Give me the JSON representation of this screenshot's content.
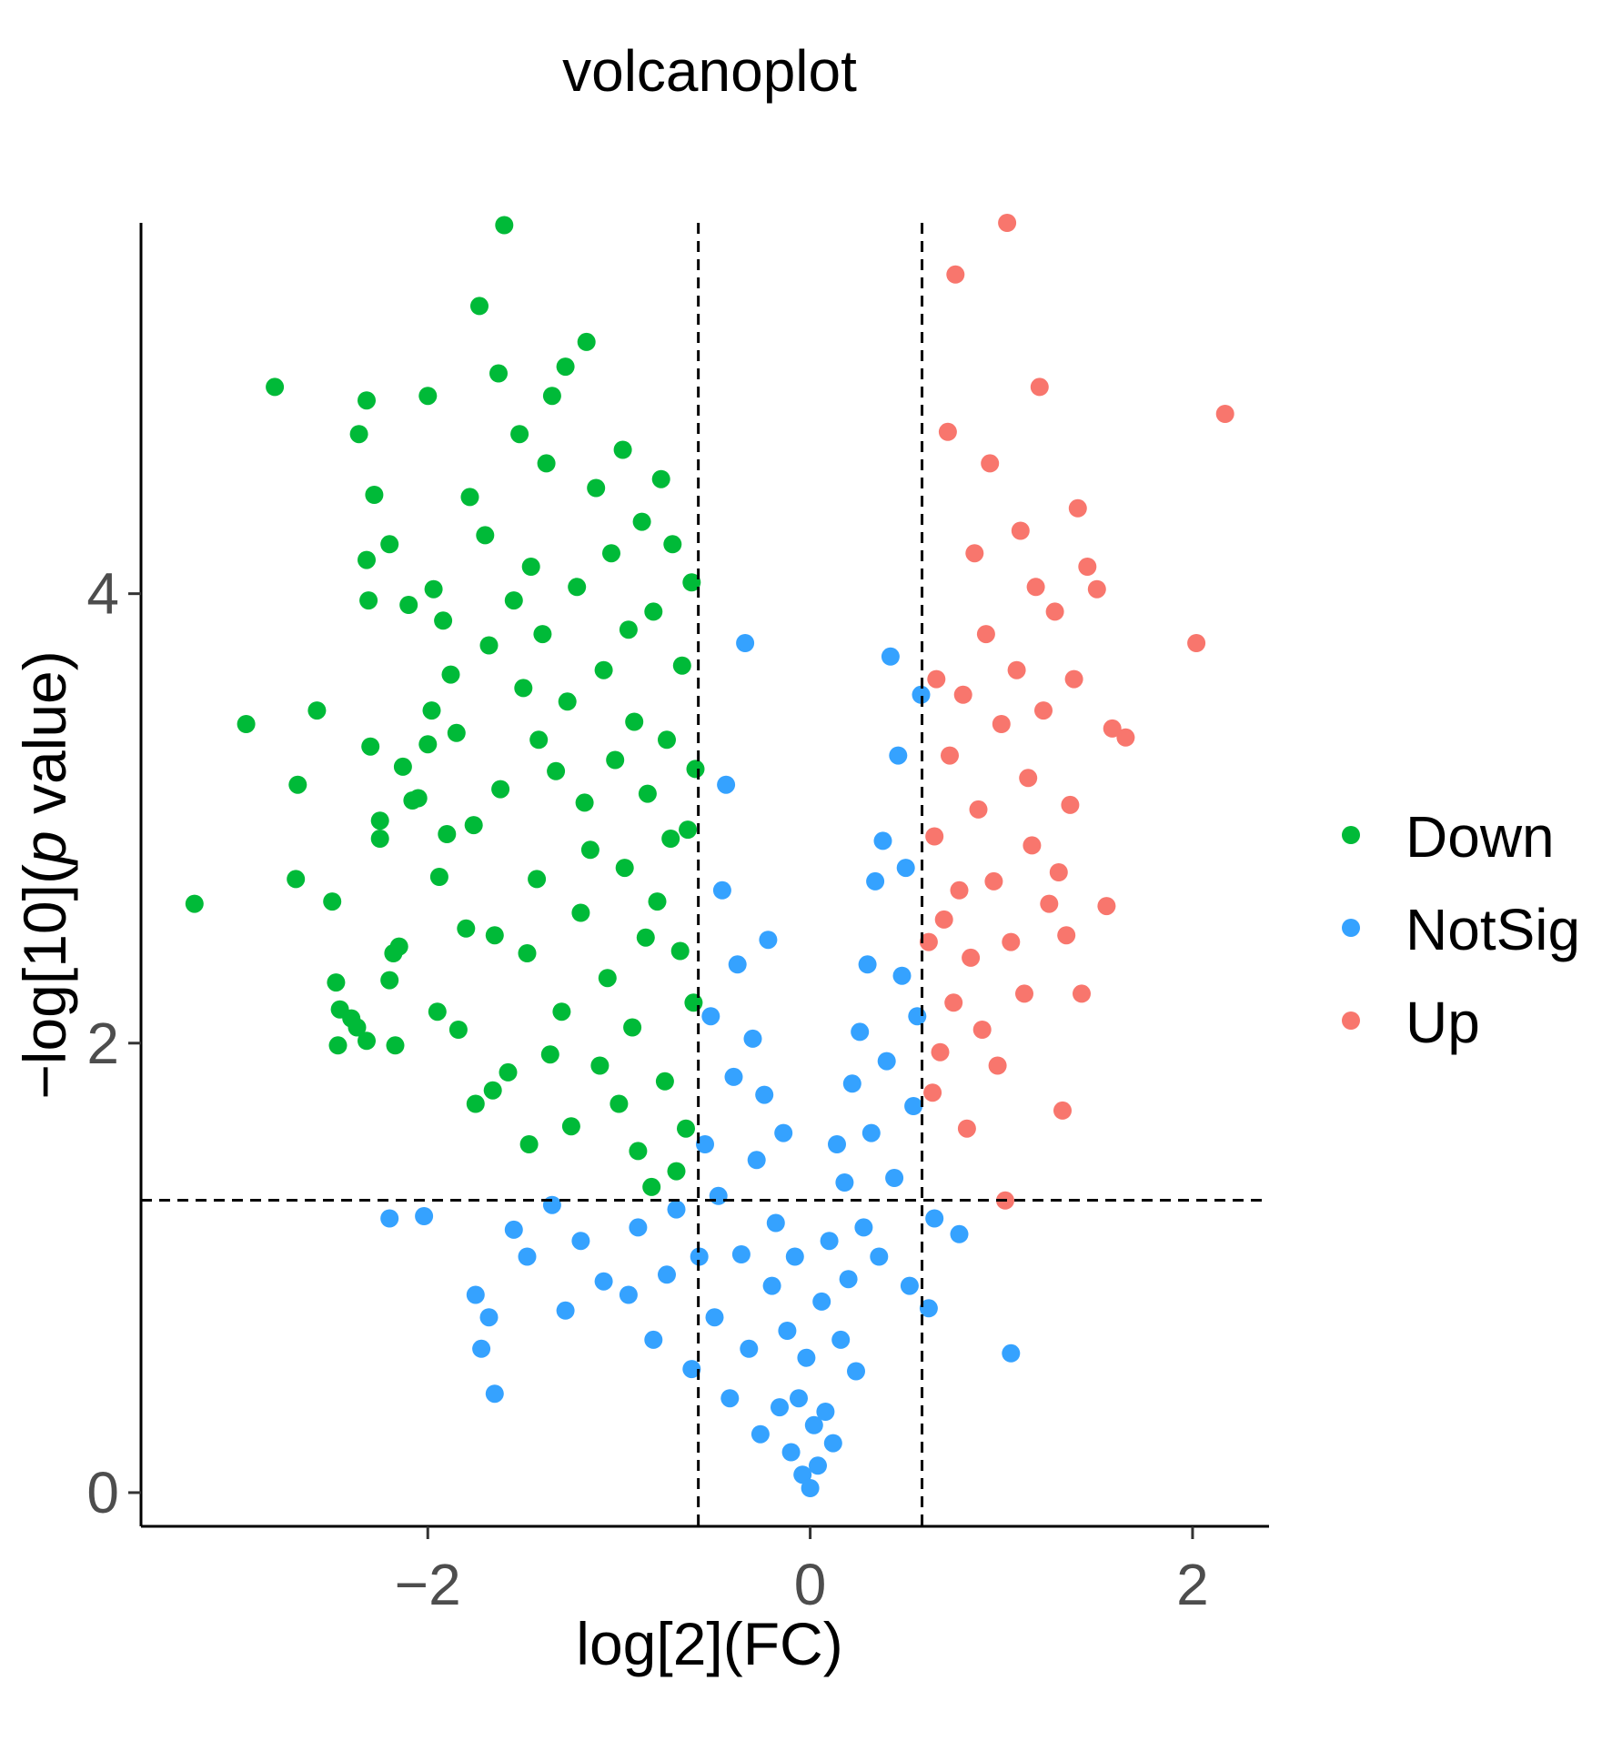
{
  "chart_data": {
    "type": "scatter",
    "title": "volcanoplot",
    "xlabel": "log[2](FC)",
    "ylabel": "−log[10](p value)",
    "ylabel_parts": {
      "prefix": "−log[10](",
      "italic": "p",
      "suffix": " value)"
    },
    "xlim": [
      -3.5,
      2.4
    ],
    "ylim": [
      -0.15,
      5.65
    ],
    "xticks": [
      -2,
      0,
      2
    ],
    "xtick_labels": [
      "−2",
      "0",
      "2"
    ],
    "yticks": [
      0,
      2,
      4
    ],
    "ytick_labels": [
      "0",
      "2",
      "4"
    ],
    "thresholds": {
      "fc_low": -0.585,
      "fc_high": 0.585,
      "p_line": 1.301
    },
    "grid": false,
    "legend_position": "right",
    "series": [
      {
        "name": "Down",
        "color": "#00ba38",
        "points": [
          [
            -3.22,
            2.62
          ],
          [
            -2.95,
            3.42
          ],
          [
            -2.8,
            4.92
          ],
          [
            -2.68,
            3.15
          ],
          [
            -2.69,
            2.73
          ],
          [
            -2.58,
            3.48
          ],
          [
            -2.48,
            2.27
          ],
          [
            -2.5,
            2.63
          ],
          [
            -2.46,
            2.15
          ],
          [
            -2.47,
            1.99
          ],
          [
            -2.4,
            2.11
          ],
          [
            -2.37,
            2.07
          ],
          [
            -2.32,
            2.01
          ],
          [
            -2.32,
            4.15
          ],
          [
            -2.31,
            3.97
          ],
          [
            -2.3,
            3.32
          ],
          [
            -2.32,
            4.86
          ],
          [
            -2.36,
            4.71
          ],
          [
            -2.28,
            4.44
          ],
          [
            -2.25,
            2.91
          ],
          [
            -2.25,
            2.99
          ],
          [
            -2.2,
            4.22
          ],
          [
            -2.2,
            2.28
          ],
          [
            -2.17,
            1.99
          ],
          [
            -2.18,
            2.4
          ],
          [
            -2.15,
            2.43
          ],
          [
            -2.13,
            3.23
          ],
          [
            -2.1,
            3.95
          ],
          [
            -2.08,
            3.08
          ],
          [
            -2.05,
            3.09
          ],
          [
            -2.0,
            4.88
          ],
          [
            -2.0,
            3.33
          ],
          [
            -1.98,
            3.48
          ],
          [
            -1.97,
            4.02
          ],
          [
            -1.95,
            2.14
          ],
          [
            -1.94,
            2.74
          ],
          [
            -1.92,
            3.88
          ],
          [
            -1.9,
            2.93
          ],
          [
            -1.88,
            3.64
          ],
          [
            -1.85,
            3.38
          ],
          [
            -1.84,
            2.06
          ],
          [
            -1.8,
            2.51
          ],
          [
            -1.78,
            4.43
          ],
          [
            -1.76,
            2.97
          ],
          [
            -1.75,
            1.73
          ],
          [
            -1.73,
            5.28
          ],
          [
            -1.7,
            4.26
          ],
          [
            -1.68,
            3.77
          ],
          [
            -1.66,
            1.79
          ],
          [
            -1.65,
            2.48
          ],
          [
            -1.63,
            4.98
          ],
          [
            -1.62,
            3.13
          ],
          [
            -1.6,
            5.64
          ],
          [
            -1.58,
            1.87
          ],
          [
            -1.55,
            3.97
          ],
          [
            -1.52,
            4.71
          ],
          [
            -1.5,
            3.58
          ],
          [
            -1.48,
            2.4
          ],
          [
            -1.47,
            1.55
          ],
          [
            -1.46,
            4.12
          ],
          [
            -1.43,
            2.73
          ],
          [
            -1.42,
            3.35
          ],
          [
            -1.4,
            3.82
          ],
          [
            -1.38,
            4.58
          ],
          [
            -1.36,
            1.95
          ],
          [
            -1.35,
            4.88
          ],
          [
            -1.33,
            3.21
          ],
          [
            -1.3,
            2.14
          ],
          [
            -1.28,
            5.01
          ],
          [
            -1.27,
            3.52
          ],
          [
            -1.25,
            1.63
          ],
          [
            -1.22,
            4.03
          ],
          [
            -1.2,
            2.58
          ],
          [
            -1.18,
            3.07
          ],
          [
            -1.17,
            5.12
          ],
          [
            -1.15,
            2.86
          ],
          [
            -1.12,
            4.47
          ],
          [
            -1.1,
            1.9
          ],
          [
            -1.08,
            3.66
          ],
          [
            -1.06,
            2.29
          ],
          [
            -1.04,
            4.18
          ],
          [
            -1.02,
            3.26
          ],
          [
            -1.0,
            1.73
          ],
          [
            -0.98,
            4.64
          ],
          [
            -0.97,
            2.78
          ],
          [
            -0.95,
            3.84
          ],
          [
            -0.93,
            2.07
          ],
          [
            -0.92,
            3.43
          ],
          [
            -0.9,
            1.52
          ],
          [
            -0.88,
            4.32
          ],
          [
            -0.86,
            2.47
          ],
          [
            -0.85,
            3.11
          ],
          [
            -0.83,
            1.36
          ],
          [
            -0.82,
            3.92
          ],
          [
            -0.8,
            2.63
          ],
          [
            -0.78,
            4.51
          ],
          [
            -0.76,
            1.83
          ],
          [
            -0.75,
            3.35
          ],
          [
            -0.73,
            2.91
          ],
          [
            -0.72,
            4.22
          ],
          [
            -0.7,
            1.43
          ],
          [
            -0.68,
            2.41
          ],
          [
            -0.67,
            3.68
          ],
          [
            -0.65,
            1.62
          ],
          [
            -0.64,
            2.95
          ],
          [
            -0.62,
            4.05
          ],
          [
            -0.61,
            2.18
          ],
          [
            -0.6,
            3.22
          ]
        ]
      },
      {
        "name": "NotSig",
        "color": "#35a2ff",
        "points": [
          [
            -2.2,
            1.22
          ],
          [
            -2.02,
            1.23
          ],
          [
            -1.75,
            0.88
          ],
          [
            -1.72,
            0.64
          ],
          [
            -1.68,
            0.78
          ],
          [
            -1.65,
            0.44
          ],
          [
            -1.55,
            1.17
          ],
          [
            -1.48,
            1.05
          ],
          [
            -1.35,
            1.28
          ],
          [
            -1.28,
            0.81
          ],
          [
            -1.2,
            1.12
          ],
          [
            -1.08,
            0.94
          ],
          [
            -0.95,
            0.88
          ],
          [
            -0.9,
            1.18
          ],
          [
            -0.82,
            0.68
          ],
          [
            -0.75,
            0.97
          ],
          [
            -0.7,
            1.26
          ],
          [
            -0.62,
            0.55
          ],
          [
            -0.58,
            1.05
          ],
          [
            -0.55,
            1.55
          ],
          [
            -0.52,
            2.12
          ],
          [
            -0.5,
            0.78
          ],
          [
            -0.48,
            1.32
          ],
          [
            -0.46,
            2.68
          ],
          [
            -0.44,
            3.15
          ],
          [
            -0.42,
            0.42
          ],
          [
            -0.4,
            1.85
          ],
          [
            -0.38,
            2.35
          ],
          [
            -0.36,
            1.06
          ],
          [
            -0.34,
            3.78
          ],
          [
            -0.32,
            0.64
          ],
          [
            -0.3,
            2.02
          ],
          [
            -0.28,
            1.48
          ],
          [
            -0.26,
            0.26
          ],
          [
            -0.24,
            1.77
          ],
          [
            -0.22,
            2.46
          ],
          [
            -0.2,
            0.92
          ],
          [
            -0.18,
            1.2
          ],
          [
            -0.16,
            0.38
          ],
          [
            -0.14,
            1.6
          ],
          [
            -0.12,
            0.72
          ],
          [
            -0.1,
            0.18
          ],
          [
            -0.08,
            1.05
          ],
          [
            -0.06,
            0.42
          ],
          [
            -0.04,
            0.08
          ],
          [
            -0.02,
            0.6
          ],
          [
            0.0,
            0.02
          ],
          [
            0.02,
            0.3
          ],
          [
            0.04,
            0.12
          ],
          [
            0.06,
            0.85
          ],
          [
            0.08,
            0.36
          ],
          [
            0.1,
            1.12
          ],
          [
            0.12,
            0.22
          ],
          [
            0.14,
            1.55
          ],
          [
            0.16,
            0.68
          ],
          [
            0.18,
            1.38
          ],
          [
            0.2,
            0.95
          ],
          [
            0.22,
            1.82
          ],
          [
            0.24,
            0.54
          ],
          [
            0.26,
            2.05
          ],
          [
            0.28,
            1.18
          ],
          [
            0.3,
            2.35
          ],
          [
            0.32,
            1.6
          ],
          [
            0.34,
            2.72
          ],
          [
            0.36,
            1.05
          ],
          [
            0.38,
            2.9
          ],
          [
            0.4,
            1.92
          ],
          [
            0.42,
            3.72
          ],
          [
            0.44,
            1.4
          ],
          [
            0.46,
            3.28
          ],
          [
            0.48,
            2.3
          ],
          [
            0.5,
            2.78
          ],
          [
            0.52,
            0.92
          ],
          [
            0.54,
            1.72
          ],
          [
            0.56,
            2.12
          ],
          [
            0.58,
            3.55
          ],
          [
            0.62,
            0.82
          ],
          [
            0.65,
            1.22
          ],
          [
            0.78,
            1.15
          ],
          [
            1.05,
            0.62
          ]
        ]
      },
      {
        "name": "Up",
        "color": "#f8766d",
        "points": [
          [
            0.62,
            2.45
          ],
          [
            0.64,
            1.78
          ],
          [
            0.65,
            2.92
          ],
          [
            0.66,
            3.62
          ],
          [
            0.68,
            1.96
          ],
          [
            0.7,
            2.55
          ],
          [
            0.72,
            4.72
          ],
          [
            0.73,
            3.28
          ],
          [
            0.75,
            2.18
          ],
          [
            0.76,
            5.42
          ],
          [
            0.78,
            2.68
          ],
          [
            0.8,
            3.55
          ],
          [
            0.82,
            1.62
          ],
          [
            0.84,
            2.38
          ],
          [
            0.86,
            4.18
          ],
          [
            0.88,
            3.04
          ],
          [
            0.9,
            2.06
          ],
          [
            0.92,
            3.82
          ],
          [
            0.94,
            4.58
          ],
          [
            0.96,
            2.72
          ],
          [
            0.98,
            1.9
          ],
          [
            1.0,
            3.42
          ],
          [
            1.02,
            1.3
          ],
          [
            1.03,
            5.65
          ],
          [
            1.05,
            2.45
          ],
          [
            1.08,
            3.66
          ],
          [
            1.1,
            4.28
          ],
          [
            1.12,
            2.22
          ],
          [
            1.14,
            3.18
          ],
          [
            1.16,
            2.88
          ],
          [
            1.18,
            4.03
          ],
          [
            1.2,
            4.92
          ],
          [
            1.22,
            3.48
          ],
          [
            1.25,
            2.62
          ],
          [
            1.28,
            3.92
          ],
          [
            1.3,
            2.76
          ],
          [
            1.32,
            1.7
          ],
          [
            1.34,
            2.48
          ],
          [
            1.36,
            3.06
          ],
          [
            1.38,
            3.62
          ],
          [
            1.4,
            4.38
          ],
          [
            1.42,
            2.22
          ],
          [
            1.45,
            4.12
          ],
          [
            1.5,
            4.02
          ],
          [
            1.55,
            2.61
          ],
          [
            1.58,
            3.4
          ],
          [
            1.65,
            3.36
          ],
          [
            2.02,
            3.78
          ],
          [
            2.17,
            4.8
          ]
        ]
      }
    ]
  }
}
